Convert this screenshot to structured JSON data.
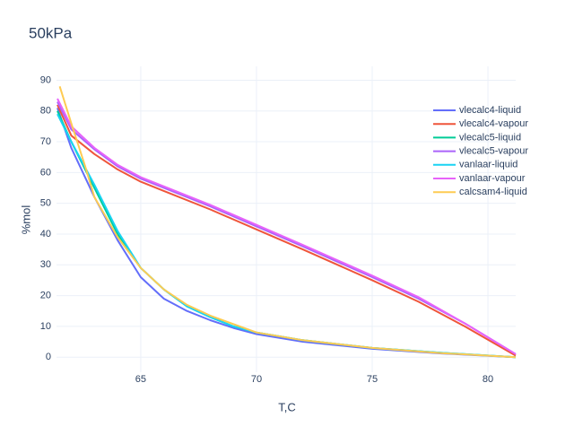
{
  "chart_data": {
    "type": "line",
    "title": "50kPa",
    "x_label": "T,C",
    "y_label": "%mol",
    "xlim": [
      61.36,
      81.2
    ],
    "ylim": [
      -4.9,
      94.5
    ],
    "xticks": [
      65,
      70,
      75,
      80
    ],
    "yticks": [
      0,
      10,
      20,
      30,
      40,
      50,
      60,
      70,
      80,
      90
    ],
    "grid": true,
    "legend": "upper-right",
    "series": [
      {
        "name": "vlecalc4-liquid",
        "color": "#636efa",
        "x": [
          61.4,
          62,
          63,
          64,
          65,
          66,
          67,
          68,
          69,
          70,
          72,
          75,
          78,
          81.2
        ],
        "values": [
          81,
          68,
          52,
          38,
          26,
          19,
          15,
          12,
          9.5,
          7.5,
          5,
          2.7,
          1.2,
          0
        ]
      },
      {
        "name": "vlecalc4-vapour",
        "color": "#ef553b",
        "x": [
          61.4,
          62,
          63,
          64,
          65,
          66,
          68,
          70,
          72,
          75,
          77,
          79,
          81.2
        ],
        "values": [
          82,
          72,
          66,
          61,
          57,
          54,
          48,
          41.5,
          35,
          25,
          18,
          10,
          0.5
        ]
      },
      {
        "name": "vlecalc5-liquid",
        "color": "#00cc96",
        "x": [
          61.4,
          62,
          63,
          64,
          65,
          66,
          67,
          68,
          69,
          70,
          72,
          75,
          78,
          81.2
        ],
        "values": [
          80,
          70,
          55,
          40,
          29,
          22,
          16.5,
          13,
          10,
          8,
          5.5,
          3,
          1.4,
          0
        ]
      },
      {
        "name": "vlecalc5-vapour",
        "color": "#ab63fa",
        "x": [
          61.4,
          62,
          63,
          64,
          65,
          66,
          68,
          70,
          72,
          75,
          77,
          79,
          81.2
        ],
        "values": [
          83,
          74,
          67.5,
          62,
          58,
          55,
          49,
          42.5,
          36,
          26,
          19,
          11,
          1
        ]
      },
      {
        "name": "vanlaar-liquid",
        "color": "#19d3f3",
        "x": [
          61.4,
          62,
          63,
          64,
          65,
          66,
          67,
          68,
          69,
          70,
          72,
          75,
          78,
          81.2
        ],
        "values": [
          79,
          70,
          56,
          41,
          29,
          22,
          16.5,
          13,
          10,
          8,
          5.5,
          3,
          1.4,
          0
        ]
      },
      {
        "name": "vanlaar-vapour",
        "color": "#e763fa",
        "x": [
          61.4,
          62,
          63,
          64,
          65,
          66,
          68,
          70,
          72,
          75,
          77,
          79,
          81.2
        ],
        "values": [
          84,
          75,
          68,
          62.5,
          58.5,
          55.5,
          49.5,
          43,
          36.5,
          26.5,
          19.5,
          11,
          1
        ]
      },
      {
        "name": "calcsam4-liquid",
        "color": "#fecb52",
        "x": [
          61.5,
          62,
          62.6,
          63,
          64,
          65,
          66,
          67,
          68,
          70,
          72,
          75,
          78,
          81.2
        ],
        "values": [
          88,
          76,
          62,
          52,
          39,
          29,
          22,
          17,
          13.5,
          8,
          5.5,
          3,
          1.3,
          0
        ]
      }
    ]
  }
}
